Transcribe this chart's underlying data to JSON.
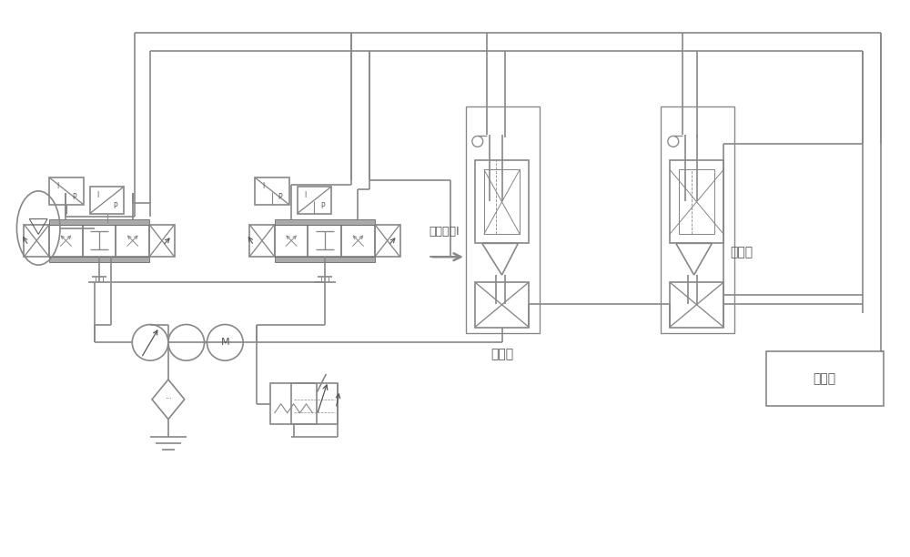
{
  "bg_color": "#ffffff",
  "lc": "#888888",
  "lc_dark": "#555555",
  "lw": 1.2,
  "lw_thick": 2.0,
  "labels": {
    "to_cylinder": "至工作缸I",
    "large_throttle": "大节流",
    "small_throttle": "小节流",
    "high_pressure": "高压水",
    "motor": "M"
  },
  "figsize": [
    10.0,
    6.12
  ],
  "dpi": 100
}
